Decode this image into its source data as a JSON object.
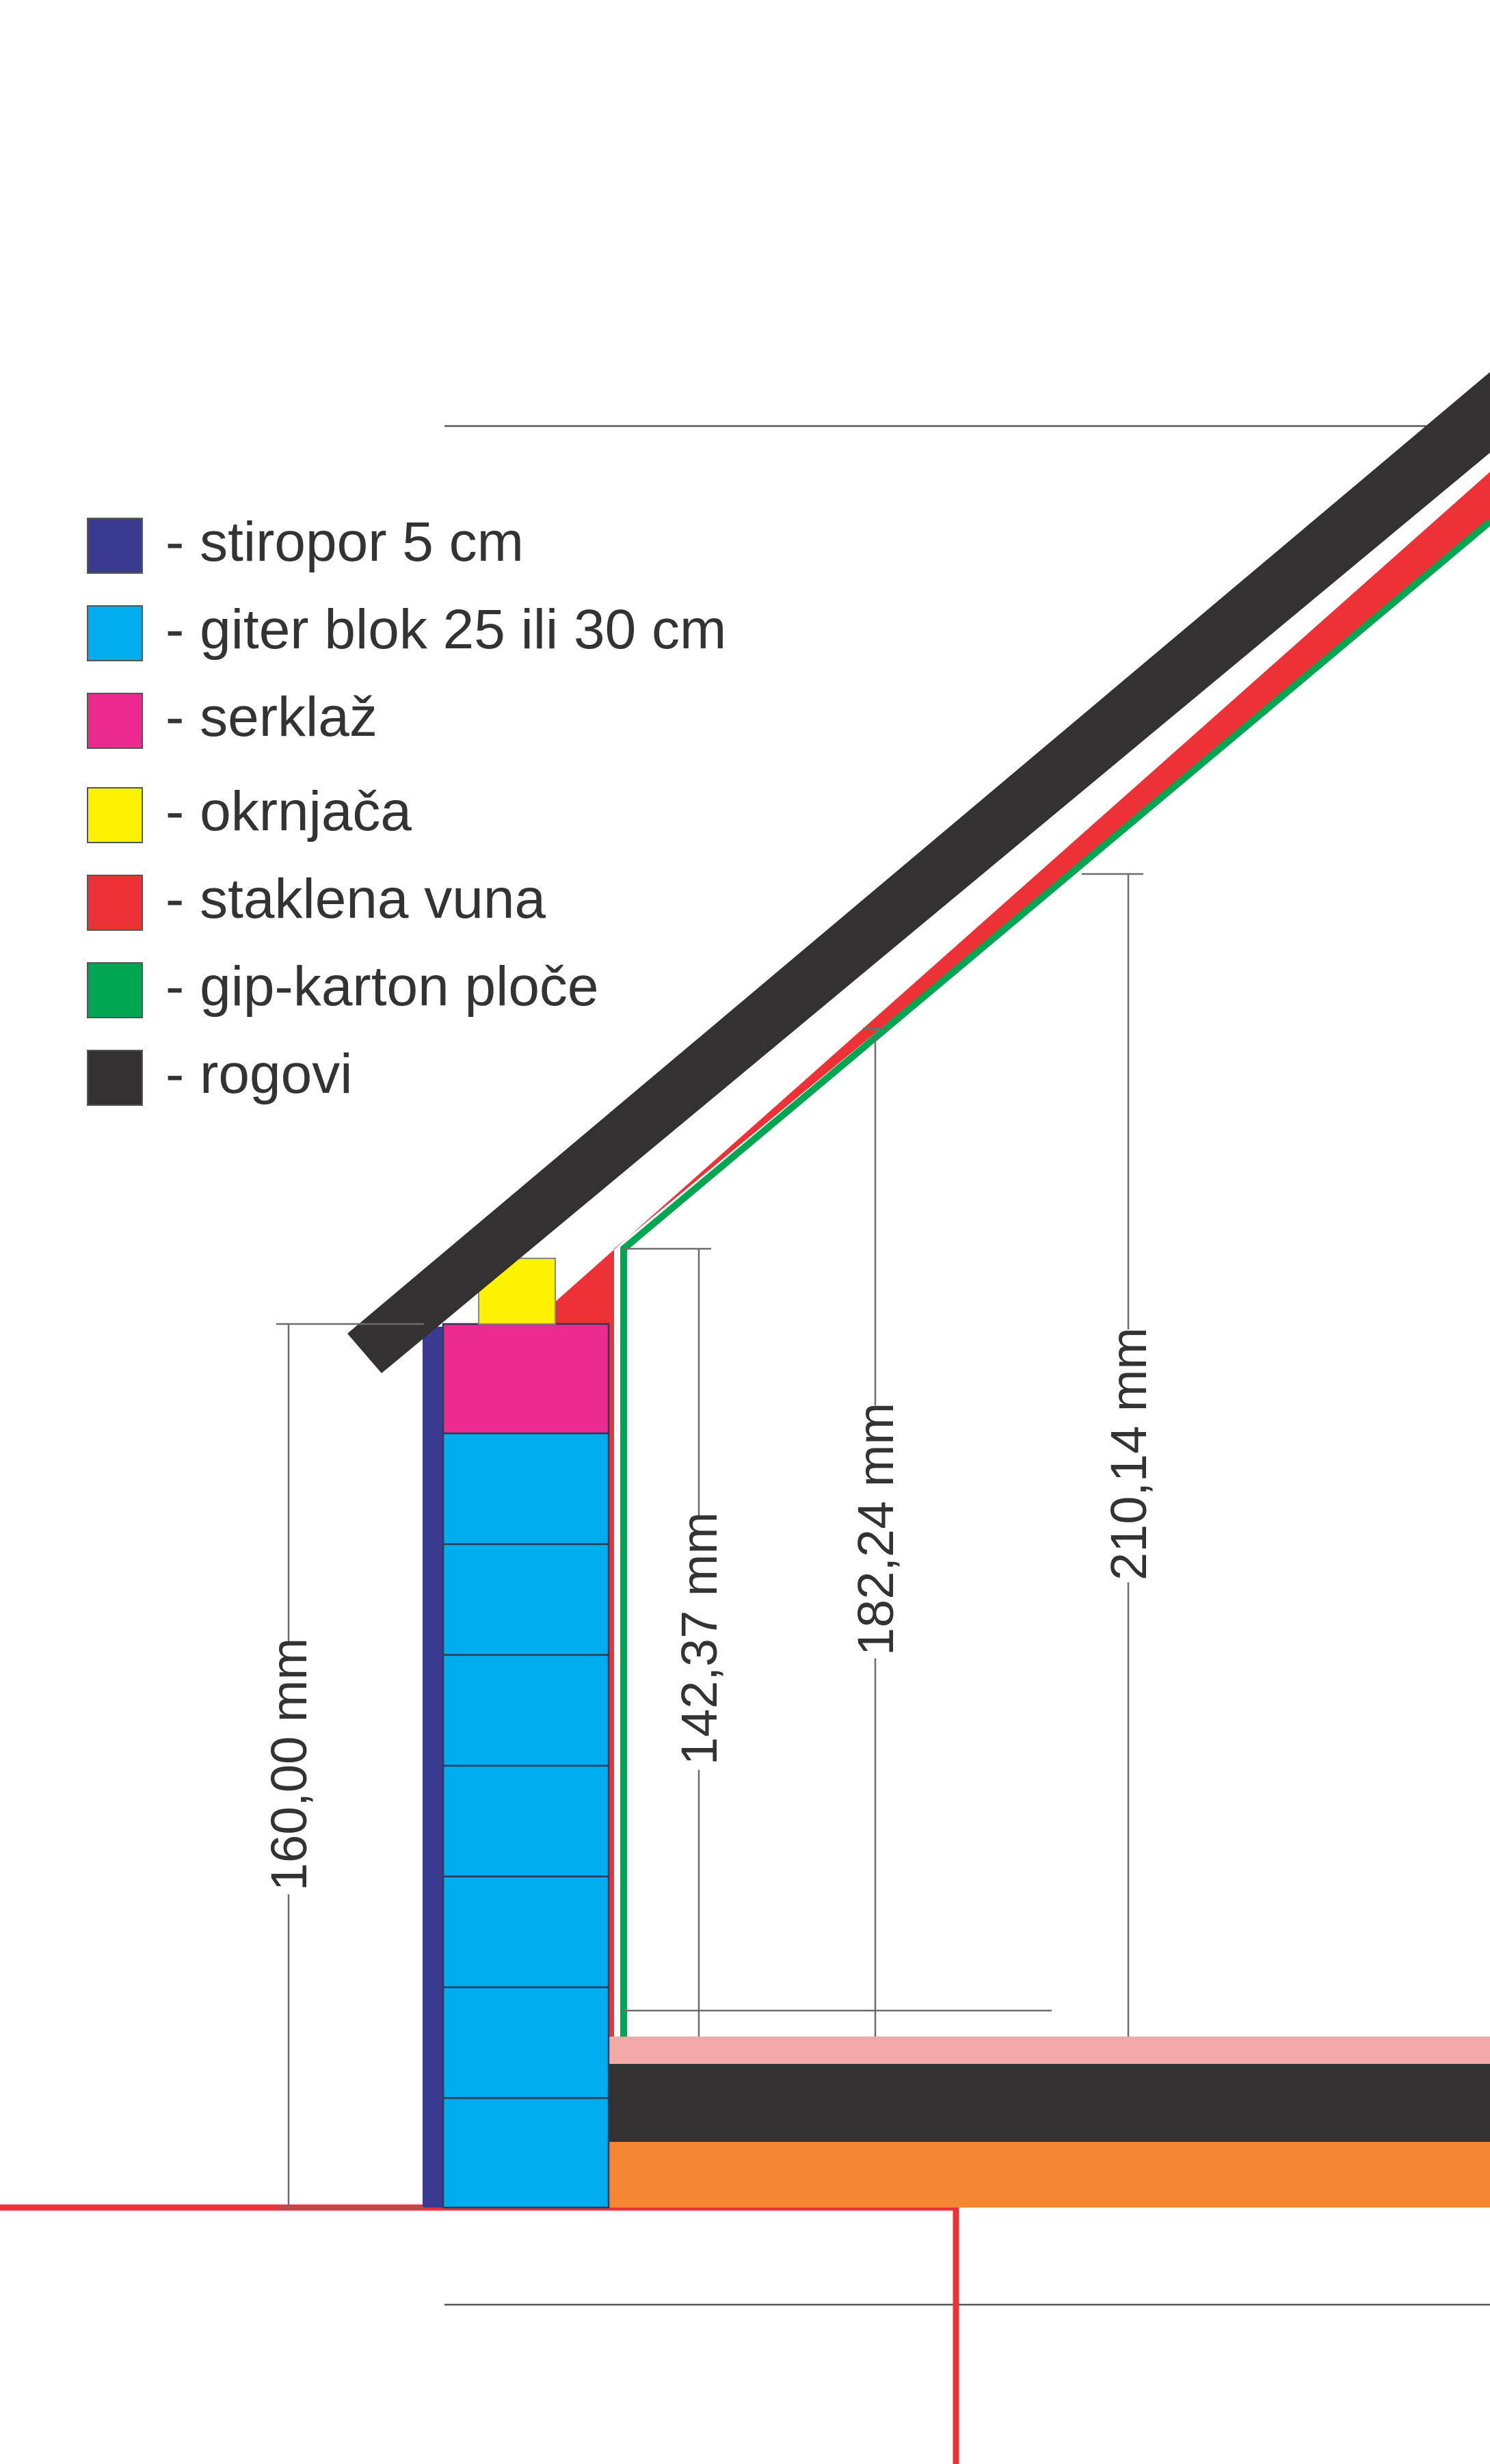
{
  "legend": [
    {
      "label": "- stiropor 5 cm",
      "color": "#3a3a91"
    },
    {
      "label": "- giter blok 25 ili 30 cm",
      "color": "#00aeef"
    },
    {
      "label": "- serklaž",
      "color": "#ec2a90"
    },
    {
      "label": "- okrnjača",
      "color": "#fff200"
    },
    {
      "label": "- staklena vuna",
      "color": "#ec3237"
    },
    {
      "label": "- gip-karton ploče",
      "color": "#00a651"
    },
    {
      "label": "- rogovi",
      "color": "#333132"
    }
  ],
  "dimensions": {
    "wall_height": "160,00 mm",
    "dim_1": "142,37 mm",
    "dim_2": "182,24 mm",
    "dim_3": "210,14 mm"
  },
  "floor_colors": {
    "finish": "#f4a9a9",
    "slab": "#333132",
    "base": "#f58634",
    "outline": "#ec3237"
  }
}
